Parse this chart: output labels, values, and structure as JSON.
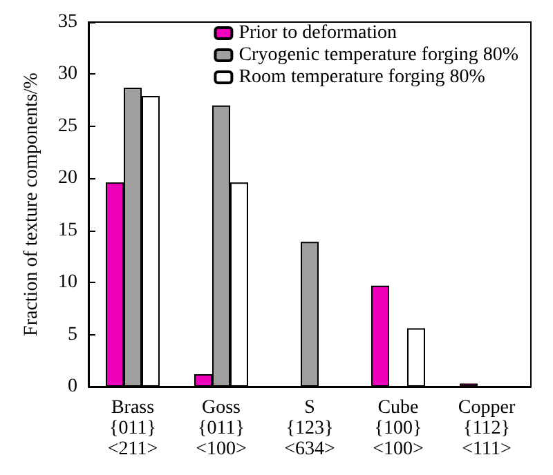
{
  "chart_data": {
    "type": "bar",
    "ylabel": "Fraction of texture components/%",
    "categories": [
      "Brass\n{011}\n<211>",
      "Goss\n{011}\n<100>",
      "S\n{123}\n<634>",
      "Cube\n{100}\n<100>",
      "Copper\n{112}\n<111>"
    ],
    "series": [
      {
        "name": "Prior to deformation",
        "color": "#ee00bb",
        "values": [
          19.6,
          1.2,
          null,
          9.7,
          0.3
        ]
      },
      {
        "name": "Cryogenic temperature forging 80%",
        "color": "#a0a0a0",
        "values": [
          28.7,
          27.0,
          13.9,
          null,
          null
        ]
      },
      {
        "name": "Room temperature forging 80%",
        "color": "#ffffff",
        "values": [
          27.9,
          19.6,
          null,
          5.6,
          null
        ]
      }
    ],
    "ylim": [
      0,
      35
    ],
    "yticks": [
      0,
      5,
      10,
      15,
      20,
      25,
      30,
      35
    ],
    "grid": false,
    "legend": "top right"
  }
}
